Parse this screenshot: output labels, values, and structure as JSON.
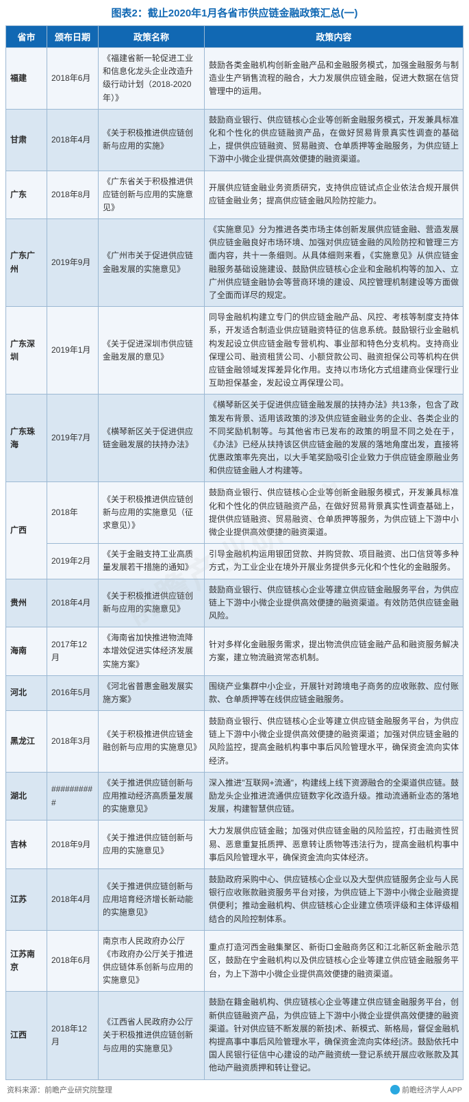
{
  "title": "图表2：截止2020年1月各省市供应链金融政策汇总(一)",
  "watermark": "前瞻产业研究院",
  "columns": [
    "省市",
    "颁布日期",
    "政策名称",
    "政策内容"
  ],
  "rows": [
    {
      "province": "福建",
      "date": "2018年6月",
      "policy": "《福建省新一轮促进工业和信息化龙头企业改造升级行动计划（2018-2020年）》",
      "content": "鼓励各类金融机构创新金融产品和金融服务模式，加强金融服务与制造业生产销售流程的融合，大力发展供应链金融，促进大数据在信贷管理中的运用。"
    },
    {
      "province": "甘肃",
      "date": "2018年4月",
      "policy": "《关于积极推进供应链创新与应用的实施》",
      "content": "鼓励商业银行、供应链核心企业等创新金融服务模式，开发兼具标准化和个性化的供应链融资产品，在做好贸易背景真实性调查的基础上，提供供应链融资、贸易融资、仓单质押等金融服务，为供应链上下游中小微企业提供高效便捷的融资渠道。"
    },
    {
      "province": "广东",
      "date": "2018年8月",
      "policy": "《广东省关于积极推进供应链创新与应用的实施意见》",
      "content": "开展供应链金融业务资质研究，支持供应链试点企业依法合规开展供应链金融业务；提高供应链金融风险防控能力。"
    },
    {
      "province": "广东广州",
      "date": "2019年9月",
      "policy": "《广州市关于促进供应链金融发展的实施意见》",
      "content": "《实施意见》分为推进各类市场主体创新发展供应链金融、营造发展供应链金融良好市场环境、加强对供应链金融的风险防控和管理三方面内容，共十一条细则。从具体细则来看，《实施意见》从供应链金融服务基础设施建设、鼓励供应链核心企业和金融机构等的加入、立广州供应链金融协会等营商环境的建设、风控管理机制建设等方面做了全面而详尽的规定。"
    },
    {
      "province": "广东深圳",
      "date": "2019年1月",
      "policy": "《关于促进深圳市供应链金融发展的意见》",
      "content": "同导金融机构建立专门的供应链金融产品、风控、考核等制度支持体系，开发适合制造业供应链融资特征的信息系统。鼓励银行业金融机构发起设立供应链金融专营机构、事业部和特色分支机构。支持商业保理公司、融资租赁公司、小额贷款公司、融资担保公司等机构在供应链金融领域发挥差异化作用。支持以市场化方式组建商业保理行业互助担保基金，发起设立再保理公司。"
    },
    {
      "province": "广东珠海",
      "date": "2019年7月",
      "policy": "《横琴新区关于促进供应链金融发展的扶持办法》",
      "content": "《横琴新区关于促进供应链金融发展的扶持办法》共13条，包含了政策发布背景、适用该政策的涉及供应链金融业务的企业、各类企业的不同奖励机制等。与其他省市已发布的政策的明显不同之处在于，《办法》已经从扶持该区供应链金融的发展的落地角度出发，直接将优惠政策率先亮出，以大手笔奖励吸引企业致力于供应链金原融业务和供应链金融人才构建等。"
    },
    {
      "province": "广西",
      "date": "2018年",
      "policy": "《关于积极推进供应链创新与应用的实施意见（征求意见）》",
      "content": "鼓励商业银行、供应链核心企业等创新金融服务模式，开发兼具标准化和个性化的供应链融资产品，在做好贸易背景真实性调查基础上，提供供应链融资、贸易融资、仓单质押等服务，为供应链上下游中小微企业提供高效便捷的融资渠道。",
      "rowspan": 2
    },
    {
      "province": "",
      "date": "2019年2月",
      "policy": "《关于金融支持工业高质量发展若干措施的通知》",
      "content": "引导金融机构运用银团贷款、并购贷款、项目融资、出口信贷等多种方式，为工业企业在境外开展业务提供多元化和个性化的金融服务。"
    },
    {
      "province": "贵州",
      "date": "2018年4月",
      "policy": "《关于积极推进供应链创新与应用的实施意见》",
      "content": "鼓励商业银行、供应链核心企业等建立供应链金融服务平台，为供应链上下游中小微企业提供高效便捷的融资渠道。有效防范供应链金融风险。"
    },
    {
      "province": "海南",
      "date": "2017年12月",
      "policy": "《海南省加快推进物流降本增效促进实体经济发展实施方案》",
      "content": "针对多样化金融服务需求，提出物流供应链金融产品和融资服务解决方案，建立物流融资常态机制。"
    },
    {
      "province": "河北",
      "date": "2016年5月",
      "policy": "《河北省普惠金融发展实施方案》",
      "content": "围绕产业集群中小企业，开展针对跨境电子商务的应收账款、应付账款、仓单质押等在线供应链金融服务。"
    },
    {
      "province": "黑龙江",
      "date": "2018年3月",
      "policy": "《关于积极推进供应链金融创新与应用的实施意见》",
      "content": "鼓励商业银行、供应链核心企业等建立供应链金融服务平台，为供应链上下游中小微企业提供高效便捷的融资渠道；加强对供应链金融的风险监控，提高金融机构事中事后风险管理水平，确保资金流向实体经济。"
    },
    {
      "province": "湖北",
      "date": "##########",
      "policy": "《关于推进供应链创新与应用推动经济高质量发展的实施意见》",
      "content": "深入推进\"互联网+流通\"，构建线上线下资源融合的全渠道供应链。鼓励龙头企业推进流通供应链数字化改造升级。推动流通新业态的落地发展，构建智慧供应链。"
    },
    {
      "province": "吉林",
      "date": "2018年9月",
      "policy": "《关于推进供应链创新与应用的实施意见》",
      "content": "大力发展供应链金融；加强对供应链金融的风险监控，打击融资性贸易、恶意重复抵质押、恶意转让质物等违法行为，提高金融机构事中事后风险管理水平，确保资金流向实体经济。"
    },
    {
      "province": "江苏",
      "date": "2018年4月",
      "policy": "《关于推进供应链创新与应用培育经济增长新动能的实施意见》",
      "content": "鼓励政府采购中心、供应链核心企业以及大型供应链服务企业与人民银行应收账款融资服务平台对接，为供应链上下游中小微企业融资提供便利；推动金融机构、供应链核心企业建立债项评级和主体评级相结合的风险控制体系。"
    },
    {
      "province": "江苏南京",
      "date": "2018年6月",
      "policy": "南京市人民政府办公厅《市政府办公厅关于推进供应链体系创新与应用的实施意见》",
      "content": "重点打造河西金融集聚区、新街口金融商务区和江北新区新金融示范区，鼓励在宁金融机构以及供应链核心企业等建立供应链金融服务平台，为上下游中小微企业提供高效便捷的融资渠道。"
    },
    {
      "province": "江西",
      "date": "2018年12月",
      "policy": "《江西省人民政府办公厅关于积极推进供应链创新与应用的实施意见》",
      "content": "鼓励在籍金融机构、供应链核心企业等建立供应链金融服务平台，创新供应链融资产品，为供应链上下游中小微企业提供高效便捷的融资渠道。针对供应链不断发展的新技|术、新模式、新格局，督促金融机构提高事中事后风险管理水平，确保资金流向实体经|济。鼓励依托中国人民银行征信中心建设的动产融资统一登记系统开展应收账款及其他动产融资质押和转让登记。"
    }
  ],
  "footer_left": "资料来源：前瞻产业研究院整理",
  "footer_right": "前瞻经济学人APP",
  "colors": {
    "header_bg": "#1168b3",
    "header_text": "#ffffff",
    "border": "#9bb8d3",
    "row_odd": "#f2f6fb",
    "row_even": "#d9e6f2",
    "title": "#1168b3",
    "footer_text": "#6b6b6b"
  }
}
